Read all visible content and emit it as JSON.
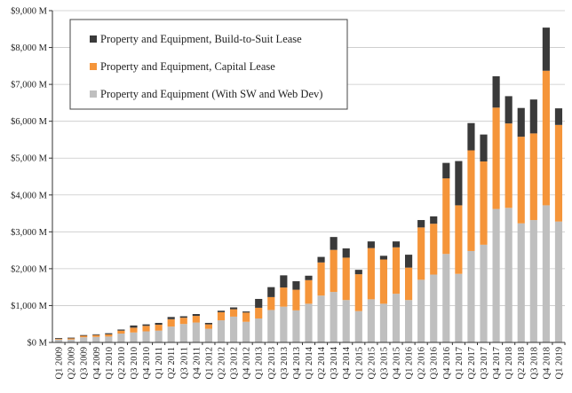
{
  "chart_data": {
    "type": "bar",
    "stacked": true,
    "title": "",
    "xlabel": "",
    "ylabel": "",
    "ylim": [
      0,
      9000
    ],
    "y_ticks": [
      0,
      1000,
      2000,
      3000,
      4000,
      5000,
      6000,
      7000,
      8000,
      9000
    ],
    "y_tick_labels": [
      "$0 M",
      "$1,000 M",
      "$2,000 M",
      "$3,000 M",
      "$4,000 M",
      "$5,000 M",
      "$6,000 M",
      "$7,000 M",
      "$8,000 M",
      "$9,000 M"
    ],
    "grid": true,
    "legend_position": "top-left",
    "categories": [
      "Q1 2009",
      "Q2 2009",
      "Q3 2009",
      "Q4 2009",
      "Q1 2010",
      "Q2 2010",
      "Q3 2010",
      "Q4 2010",
      "Q1 2011",
      "Q2 2011",
      "Q3 2011",
      "Q4 2011",
      "Q1 2012",
      "Q2 2012",
      "Q3 2012",
      "Q4 2012",
      "Q1 2013",
      "Q2 2013",
      "Q3 2013",
      "Q4 2013",
      "Q1 2014",
      "Q2 2014",
      "Q3 2014",
      "Q4 2014",
      "Q1 2015",
      "Q2 2015",
      "Q3 2015",
      "Q4 2015",
      "Q1 2016",
      "Q2 2016",
      "Q3 2016",
      "Q4 2016",
      "Q1 2017",
      "Q2 2017",
      "Q3 2017",
      "Q4 2017",
      "Q1 2018",
      "Q2 2018",
      "Q3 2018",
      "Q4 2018",
      "Q1 2019"
    ],
    "series": [
      {
        "name": "Property and Equipment (With SW and Web Dev)",
        "color": "#bfbfbf",
        "values": [
          80,
          80,
          140,
          150,
          160,
          240,
          270,
          300,
          320,
          430,
          500,
          540,
          370,
          600,
          700,
          560,
          650,
          880,
          970,
          870,
          1050,
          1270,
          1370,
          1150,
          850,
          1170,
          1050,
          1320,
          1150,
          1700,
          1840,
          2400,
          1860,
          2480,
          2650,
          3620,
          3650,
          3230,
          3320,
          3720,
          3280
        ]
      },
      {
        "name": "Property and Equipment, Capital Lease",
        "color": "#f5953a",
        "values": [
          20,
          30,
          40,
          50,
          60,
          80,
          130,
          150,
          160,
          200,
          170,
          180,
          120,
          220,
          200,
          250,
          290,
          350,
          520,
          560,
          640,
          900,
          1140,
          1150,
          1000,
          1390,
          1200,
          1260,
          880,
          1420,
          1380,
          2050,
          1860,
          2730,
          2260,
          2750,
          2290,
          2350,
          2350,
          3650,
          2620
        ]
      },
      {
        "name": "Property and Equipment, Build-to-Suit Lease",
        "color": "#3a3a3a",
        "values": [
          20,
          20,
          20,
          20,
          30,
          30,
          60,
          40,
          50,
          60,
          40,
          50,
          40,
          40,
          50,
          30,
          240,
          270,
          330,
          230,
          120,
          150,
          350,
          250,
          120,
          180,
          100,
          160,
          350,
          200,
          200,
          420,
          1200,
          740,
          730,
          850,
          740,
          780,
          920,
          1170,
          450
        ]
      }
    ],
    "legend_order": [
      2,
      1,
      0
    ]
  }
}
